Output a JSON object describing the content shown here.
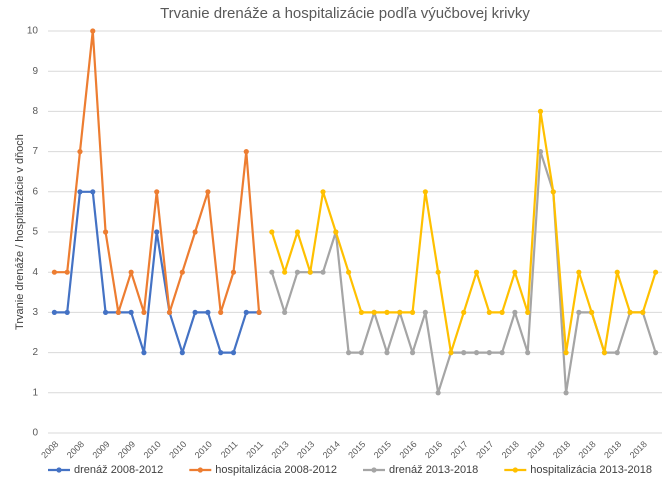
{
  "chart_data": {
    "type": "line",
    "title": "Trvanie drenáže a hospitalizácie podľa výučbovej krivky",
    "y_label": "Trvanie drenáže / hospitalizácie v dňoch",
    "categories": [
      "2008",
      null,
      "2008",
      null,
      "2009",
      null,
      "2009",
      null,
      "2010",
      null,
      "2010",
      null,
      "2010",
      null,
      "2011",
      null,
      "2011",
      null,
      "2013",
      null,
      "2013",
      null,
      "2014",
      null,
      "2015",
      null,
      "2015",
      null,
      "2016",
      null,
      "2016",
      null,
      "2017",
      null,
      "2017",
      null,
      "2018",
      null,
      "2018",
      null,
      "2018",
      null,
      "2018",
      null,
      "2018",
      null,
      "2018",
      null
    ],
    "series": [
      {
        "name": "drenáž 2008-2012",
        "color": "#4472c4",
        "values": [
          3,
          3,
          6,
          6,
          3,
          3,
          3,
          2,
          5,
          3,
          2,
          3,
          3,
          2,
          2,
          3,
          3,
          null,
          null,
          null,
          null,
          null,
          null,
          null,
          null,
          null,
          null,
          null,
          null,
          null,
          null,
          null,
          null,
          null,
          null,
          null,
          null,
          null,
          null,
          null,
          null,
          null,
          null,
          null,
          null,
          null,
          null,
          null
        ]
      },
      {
        "name": "hospitalizácia 2008-2012",
        "color": "#ed7d31",
        "values": [
          4,
          4,
          7,
          10,
          5,
          3,
          4,
          3,
          6,
          3,
          4,
          5,
          6,
          3,
          4,
          7,
          3,
          null,
          null,
          null,
          null,
          null,
          null,
          null,
          null,
          null,
          null,
          null,
          null,
          null,
          null,
          null,
          null,
          null,
          null,
          null,
          null,
          null,
          null,
          null,
          null,
          null,
          null,
          null,
          null,
          null,
          null,
          null
        ]
      },
      {
        "name": "drenáž 2013-2018",
        "color": "#a5a5a5",
        "values": [
          null,
          null,
          null,
          null,
          null,
          null,
          null,
          null,
          null,
          null,
          null,
          null,
          null,
          null,
          null,
          null,
          null,
          4,
          3,
          4,
          4,
          4,
          5,
          2,
          2,
          3,
          2,
          3,
          2,
          3,
          1,
          2,
          2,
          2,
          2,
          2,
          3,
          2,
          7,
          6,
          1,
          3,
          3,
          2,
          2,
          3,
          3,
          2
        ]
      },
      {
        "name": "hospitalizácia 2013-2018",
        "color": "#ffc000",
        "values": [
          null,
          null,
          null,
          null,
          null,
          null,
          null,
          null,
          null,
          null,
          null,
          null,
          null,
          null,
          null,
          null,
          null,
          5,
          4,
          5,
          4,
          6,
          5,
          4,
          3,
          3,
          3,
          3,
          3,
          6,
          4,
          2,
          3,
          4,
          3,
          3,
          4,
          3,
          8,
          6,
          2,
          4,
          3,
          2,
          4,
          3,
          3,
          4
        ]
      }
    ],
    "ylim": [
      0,
      10
    ],
    "yticks": [
      0,
      1,
      2,
      3,
      4,
      5,
      6,
      7,
      8,
      9,
      10
    ],
    "grid": true,
    "legend": "bottom"
  }
}
